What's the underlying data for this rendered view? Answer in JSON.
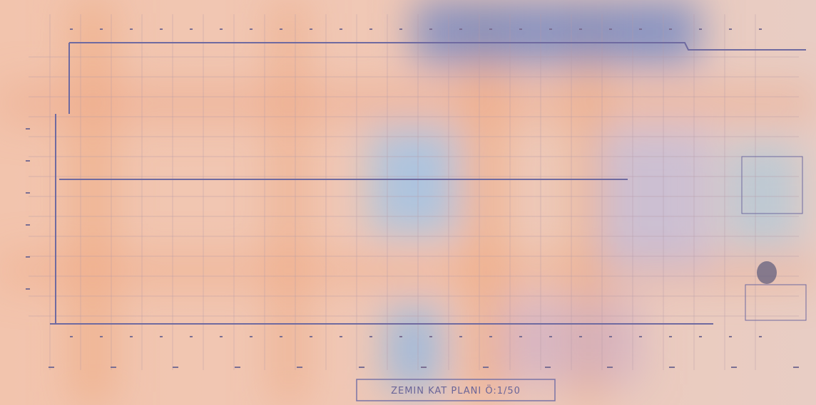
{
  "title_block": {
    "title": "ZEMIN KAT PLANI Ö:1/50"
  }
}
